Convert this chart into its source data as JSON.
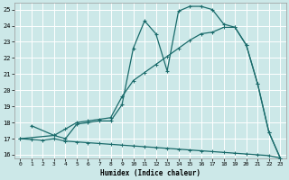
{
  "xlabel": "Humidex (Indice chaleur)",
  "bg_color": "#cce8e8",
  "grid_color": "#ffffff",
  "line_color": "#1a6b6b",
  "xlim": [
    -0.5,
    23.5
  ],
  "ylim": [
    15.8,
    25.4
  ],
  "xticks": [
    0,
    1,
    2,
    3,
    4,
    5,
    6,
    7,
    8,
    9,
    10,
    11,
    12,
    13,
    14,
    15,
    16,
    17,
    18,
    19,
    20,
    21,
    22,
    23
  ],
  "yticks": [
    16,
    17,
    18,
    19,
    20,
    21,
    22,
    23,
    24,
    25
  ],
  "line1_x": [
    1,
    3,
    4,
    5,
    6,
    7,
    8,
    9,
    10,
    11,
    12,
    13,
    14,
    15,
    16,
    17,
    18,
    19,
    20,
    21,
    22,
    23
  ],
  "line1_y": [
    17.8,
    17.2,
    17.0,
    17.9,
    18.0,
    18.1,
    18.1,
    19.1,
    22.6,
    24.3,
    23.5,
    21.2,
    24.9,
    25.2,
    25.2,
    25.0,
    24.1,
    23.9,
    22.8,
    20.4,
    17.4,
    15.8
  ],
  "line2_x": [
    0,
    3,
    4,
    5,
    6,
    7,
    8,
    9,
    10,
    11,
    12,
    13,
    14,
    15,
    16,
    17,
    18,
    19,
    20,
    21,
    22,
    23
  ],
  "line2_y": [
    17.0,
    17.2,
    17.6,
    18.0,
    18.1,
    18.2,
    18.3,
    19.6,
    20.6,
    21.1,
    21.6,
    22.1,
    22.6,
    23.1,
    23.5,
    23.6,
    23.9,
    23.9,
    22.8,
    20.4,
    17.4,
    15.8
  ],
  "line3_x": [
    0,
    1,
    2,
    3,
    4,
    5,
    6,
    7,
    8,
    9,
    10,
    11,
    12,
    13,
    14,
    15,
    16,
    17,
    18,
    19,
    20,
    21,
    22,
    23
  ],
  "line3_y": [
    17.0,
    16.95,
    16.9,
    17.0,
    16.85,
    16.8,
    16.75,
    16.7,
    16.65,
    16.6,
    16.55,
    16.5,
    16.45,
    16.4,
    16.35,
    16.3,
    16.25,
    16.2,
    16.15,
    16.1,
    16.05,
    16.0,
    15.95,
    15.8
  ]
}
